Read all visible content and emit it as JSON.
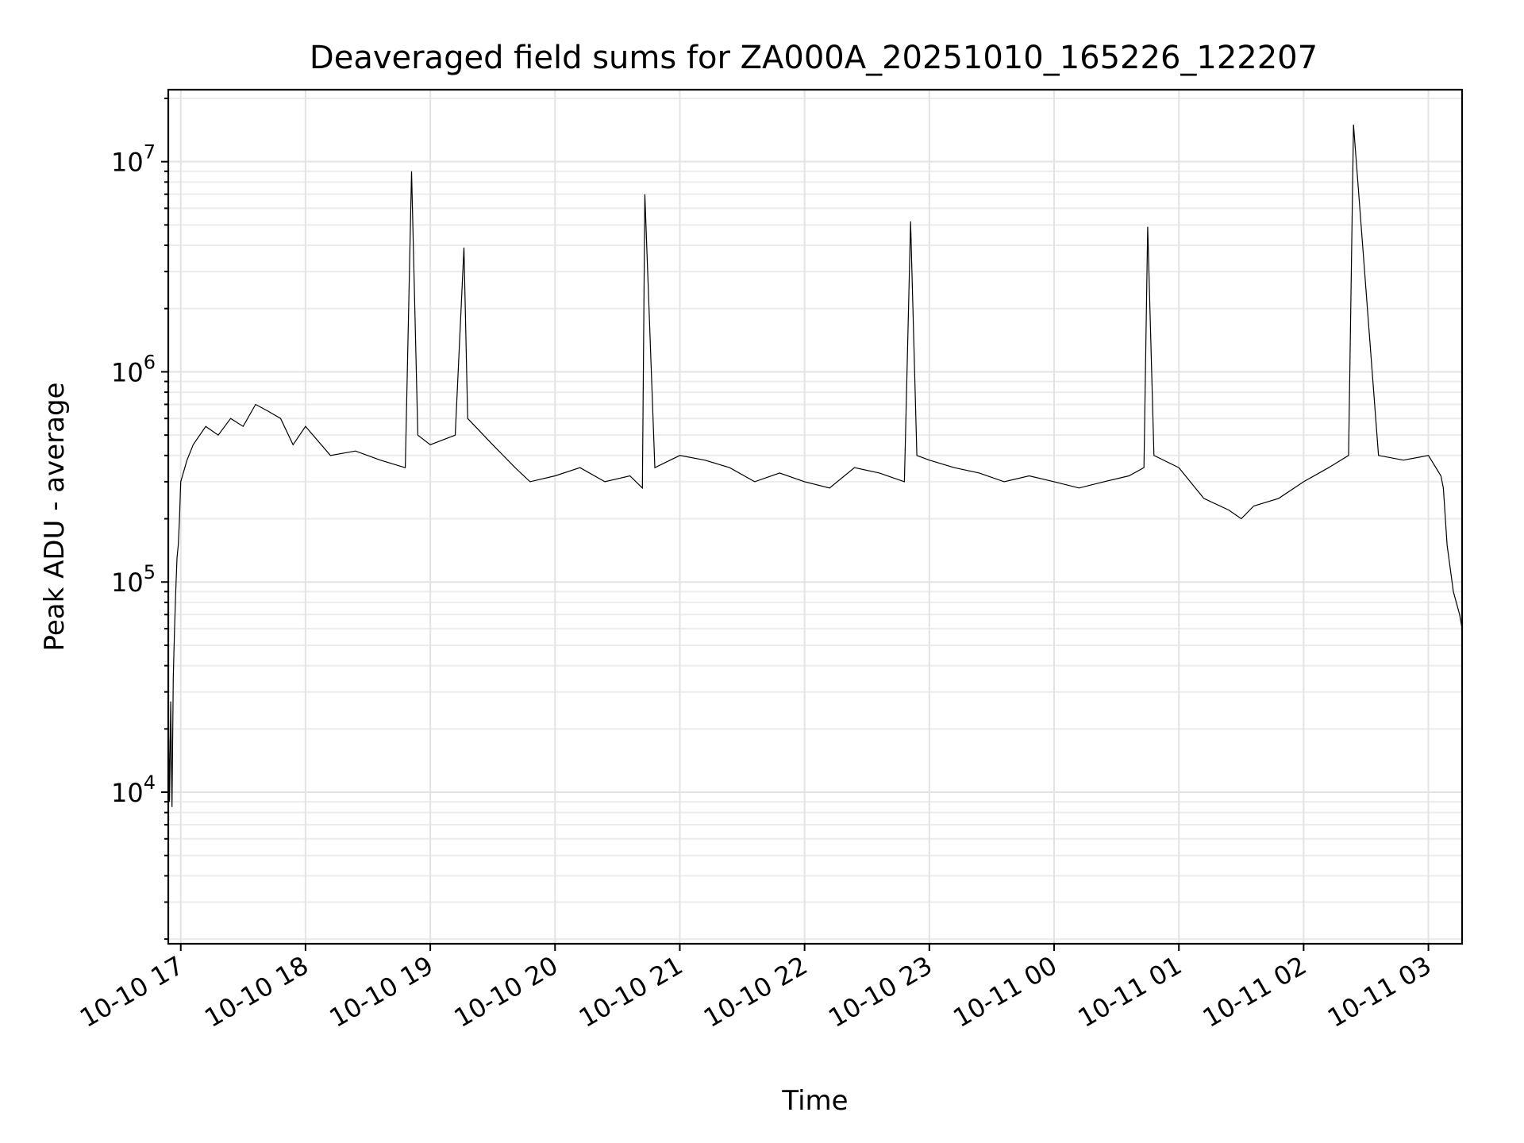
{
  "chart_data": {
    "type": "line",
    "title": "Deaveraged field sums for ZA000A_20251010_165226_122207",
    "xlabel": "Time",
    "ylabel": "Peak ADU - average",
    "yscale": "log",
    "ylim": [
      1900,
      22000000
    ],
    "xlim_hours": [
      -0.1,
      10.27
    ],
    "grid": true,
    "x_tick_labels": [
      "10-10 17",
      "10-10 18",
      "10-10 19",
      "10-10 20",
      "10-10 21",
      "10-10 22",
      "10-10 23",
      "10-11 00",
      "10-11 01",
      "10-11 02",
      "10-11 03"
    ],
    "x_tick_hours": [
      0,
      1,
      2,
      3,
      4,
      5,
      6,
      7,
      8,
      9,
      10
    ],
    "y_ticks": [
      {
        "value": 10000,
        "base": "10",
        "exp": "4"
      },
      {
        "value": 100000,
        "base": "10",
        "exp": "5"
      },
      {
        "value": 1000000,
        "base": "10",
        "exp": "6"
      },
      {
        "value": 10000000,
        "base": "10",
        "exp": "7"
      }
    ],
    "series": [
      {
        "name": "Peak ADU - average",
        "color": "#000000",
        "x_hours": [
          -0.1,
          -0.09,
          -0.08,
          -0.07,
          -0.06,
          -0.05,
          -0.04,
          -0.03,
          -0.02,
          -0.01,
          0.0,
          0.05,
          0.1,
          0.2,
          0.3,
          0.4,
          0.5,
          0.6,
          0.7,
          0.8,
          0.9,
          1.0,
          1.2,
          1.4,
          1.6,
          1.8,
          1.85,
          1.9,
          2.0,
          2.2,
          2.27,
          2.3,
          2.5,
          2.68,
          2.8,
          3.0,
          3.2,
          3.4,
          3.6,
          3.7,
          3.72,
          3.8,
          4.0,
          4.2,
          4.4,
          4.6,
          4.8,
          5.0,
          5.2,
          5.4,
          5.6,
          5.8,
          5.85,
          5.9,
          6.0,
          6.2,
          6.4,
          6.6,
          6.8,
          7.0,
          7.2,
          7.4,
          7.6,
          7.72,
          7.75,
          7.8,
          8.0,
          8.2,
          8.4,
          8.5,
          8.6,
          8.8,
          9.0,
          9.2,
          9.36,
          9.4,
          9.6,
          9.8,
          10.0,
          10.1,
          10.12,
          10.15,
          10.2,
          10.25,
          10.27
        ],
        "values": [
          30000,
          9000,
          27000,
          8500,
          35000,
          60000,
          90000,
          130000,
          150000,
          200000,
          300000,
          380000,
          450000,
          550000,
          500000,
          600000,
          550000,
          700000,
          650000,
          600000,
          450000,
          550000,
          400000,
          420000,
          380000,
          350000,
          9000000,
          500000,
          450000,
          500000,
          3900000,
          600000,
          450000,
          350000,
          300000,
          320000,
          350000,
          300000,
          320000,
          280000,
          7000000,
          350000,
          400000,
          380000,
          350000,
          300000,
          330000,
          300000,
          280000,
          350000,
          330000,
          300000,
          5200000,
          400000,
          380000,
          350000,
          330000,
          300000,
          320000,
          300000,
          280000,
          300000,
          320000,
          350000,
          4900000,
          400000,
          350000,
          250000,
          220000,
          200000,
          230000,
          250000,
          300000,
          350000,
          400000,
          15000000,
          400000,
          380000,
          400000,
          320000,
          280000,
          150000,
          90000,
          70000,
          60000
        ]
      }
    ]
  }
}
